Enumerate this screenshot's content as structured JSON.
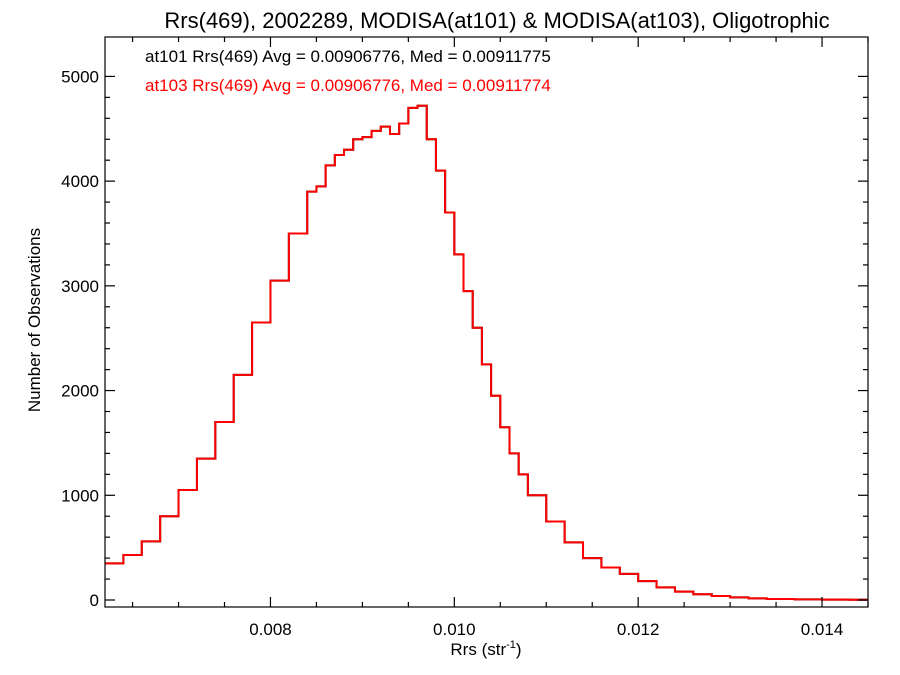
{
  "chart_data": {
    "type": "line",
    "title": "Rrs(469), 2002289, MODISA(at101) & MODISA(at103), Oligotrophic",
    "xlabel": "Rrs (str",
    "xlabel_sup": "-1",
    "xlabel_suffix": ")",
    "ylabel": "Number of Observations",
    "xlim": [
      0.0062,
      0.0145
    ],
    "ylim": [
      0,
      5000
    ],
    "xticks": [
      0.008,
      0.01,
      0.012,
      0.014
    ],
    "xtick_labels": [
      "0.008",
      "0.010",
      "0.012",
      "0.014"
    ],
    "yticks": [
      0,
      1000,
      2000,
      3000,
      4000,
      5000
    ],
    "ytick_labels": [
      "0",
      "1000",
      "2000",
      "3000",
      "4000",
      "5000"
    ],
    "grid": false,
    "annotations": [
      {
        "text": "at101 Rrs(469) Avg = 0.00906776, Med = 0.00911775",
        "color": "#000000"
      },
      {
        "text": "at103 Rrs(469) Avg = 0.00906776, Med = 0.00911774",
        "color": "#ff0000"
      }
    ],
    "series": [
      {
        "color": "#ff0000",
        "step": true,
        "x": [
          0.0062,
          0.0064,
          0.0066,
          0.0068,
          0.007,
          0.0072,
          0.0074,
          0.0076,
          0.0078,
          0.008,
          0.0082,
          0.0084,
          0.0085,
          0.0086,
          0.0087,
          0.0088,
          0.0089,
          0.009,
          0.0091,
          0.0092,
          0.0093,
          0.0094,
          0.0095,
          0.0096,
          0.0097,
          0.0098,
          0.0099,
          0.01,
          0.0101,
          0.0102,
          0.0103,
          0.0104,
          0.0105,
          0.0106,
          0.0107,
          0.0108,
          0.011,
          0.0112,
          0.0114,
          0.0116,
          0.0118,
          0.012,
          0.0122,
          0.0124,
          0.0126,
          0.0128,
          0.013,
          0.0132,
          0.0134,
          0.0137,
          0.014,
          0.0143,
          0.0145
        ],
        "y": [
          350,
          430,
          560,
          800,
          1050,
          1350,
          1700,
          2150,
          2650,
          3050,
          3500,
          3900,
          3950,
          4150,
          4250,
          4300,
          4400,
          4420,
          4480,
          4520,
          4450,
          4550,
          4700,
          4720,
          4400,
          4100,
          3700,
          3300,
          2950,
          2600,
          2250,
          1950,
          1650,
          1400,
          1200,
          1000,
          750,
          550,
          400,
          310,
          250,
          180,
          120,
          80,
          55,
          38,
          25,
          15,
          10,
          6,
          4,
          2,
          2
        ]
      },
      {
        "color": "#000000",
        "step": true,
        "x": [
          0.0062,
          0.0064,
          0.0066,
          0.0068,
          0.007,
          0.0072,
          0.0074,
          0.0076,
          0.0078,
          0.008,
          0.0082,
          0.0084,
          0.0085,
          0.0086,
          0.0087,
          0.0088,
          0.0089,
          0.009,
          0.0091,
          0.0092,
          0.0093,
          0.0094,
          0.0095,
          0.0096,
          0.0097,
          0.0098,
          0.0099,
          0.01,
          0.0101,
          0.0102,
          0.0103,
          0.0104,
          0.0105,
          0.0106,
          0.0107,
          0.0108,
          0.011,
          0.0112,
          0.0114,
          0.0116,
          0.0118,
          0.012,
          0.0122,
          0.0124,
          0.0126,
          0.0128,
          0.013,
          0.0132,
          0.0134,
          0.0137,
          0.014,
          0.0143,
          0.0145
        ],
        "y": [
          350,
          430,
          560,
          800,
          1050,
          1350,
          1700,
          2150,
          2650,
          3050,
          3500,
          3900,
          3950,
          4150,
          4250,
          4300,
          4400,
          4420,
          4480,
          4520,
          4450,
          4550,
          4700,
          4720,
          4400,
          4100,
          3700,
          3300,
          2950,
          2600,
          2250,
          1950,
          1650,
          1400,
          1200,
          1000,
          750,
          550,
          400,
          310,
          250,
          180,
          120,
          80,
          55,
          38,
          25,
          15,
          10,
          6,
          4,
          2,
          2
        ]
      }
    ]
  }
}
